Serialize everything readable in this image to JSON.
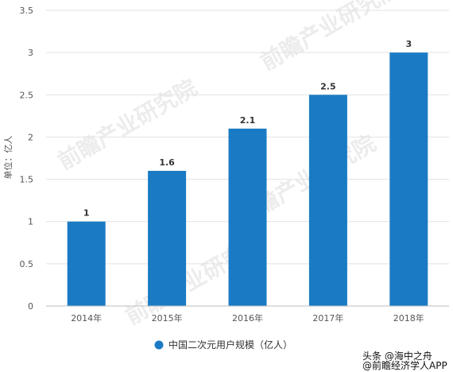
{
  "chart_data": {
    "type": "bar",
    "categories": [
      "2014年",
      "2015年",
      "2016年",
      "2017年",
      "2018年"
    ],
    "series": [
      {
        "name": "中国二次元用户规模（亿人）",
        "values": [
          1,
          1.6,
          2.1,
          2.5,
          3
        ]
      }
    ],
    "data_labels": [
      "1",
      "1.6",
      "2.1",
      "2.5",
      "3"
    ],
    "ylabel": "单位：亿人",
    "xlabel": "",
    "ylim": [
      0,
      3.5
    ],
    "yticks": [
      "0",
      "0.5",
      "1",
      "1.5",
      "2",
      "2.5",
      "3",
      "3.5"
    ],
    "grid": true,
    "legend_position": "bottom",
    "bar_color": "#1a7bc4"
  },
  "watermarks": {
    "bottom_right_1": "头条 @海中之舟",
    "bottom_right_2": "@前瞻经济学人APP",
    "background": "前瞻产业研究院"
  }
}
